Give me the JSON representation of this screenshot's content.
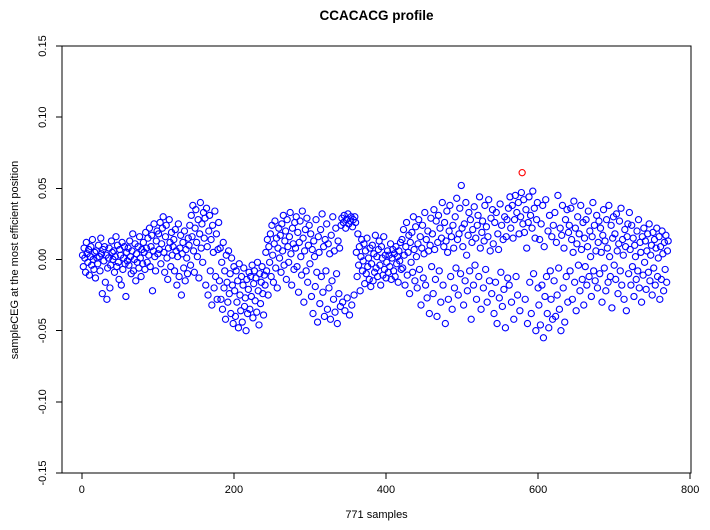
{
  "chart_data": {
    "type": "scatter",
    "title": "CCACACG profile",
    "xlabel": "771 samples",
    "ylabel": "sampleCEG at the most efficient position",
    "n_samples": 771,
    "x_ticks": [
      0,
      200,
      400,
      600,
      800
    ],
    "x_tick_labels": [
      "0",
      "200",
      "400",
      "600",
      "800"
    ],
    "y_ticks": [
      -0.15,
      -0.1,
      -0.05,
      0.0,
      0.05,
      0.1,
      0.15
    ],
    "y_tick_labels": [
      "-0.15",
      "-0.10",
      "-0.05",
      "0.00",
      "0.05",
      "0.10",
      "0.15"
    ],
    "xlim": [
      -26,
      801
    ],
    "ylim": [
      -0.15,
      0.15
    ],
    "grid": false,
    "legend": "none",
    "point_style": "open-circle",
    "point_color": "#0000ff",
    "highlight_color": "#ff0000",
    "highlight_index": 579,
    "highlight_value": 0.061,
    "axis_color": "#000000",
    "background_color": "#ffffff",
    "value_scale": 0.001,
    "values_milli": [
      3,
      -5,
      8,
      1,
      -9,
      12,
      4,
      -2,
      7,
      -11,
      2,
      9,
      -4,
      14,
      0,
      -7,
      5,
      -13,
      6,
      1,
      -3,
      10,
      2,
      -8,
      15,
      4,
      -24,
      7,
      -1,
      9,
      -16,
      3,
      -28,
      -6,
      1,
      8,
      -20,
      -4,
      13,
      5,
      0,
      6,
      -9,
      2,
      16,
      -5,
      10,
      -2,
      -14,
      7,
      3,
      -18,
      12,
      -7,
      1,
      9,
      -3,
      -26,
      5,
      -1,
      8,
      -4,
      13,
      2,
      -10,
      6,
      18,
      -8,
      0,
      11,
      -15,
      4,
      -2,
      9,
      -6,
      16,
      1,
      -12,
      7,
      -3,
      12,
      5,
      -7,
      19,
      8,
      -2,
      15,
      3,
      22,
      -5,
      9,
      17,
      -22,
      6,
      25,
      2,
      -8,
      13,
      20,
      4,
      18,
      7,
      26,
      -3,
      11,
      22,
      30,
      5,
      -9,
      16,
      24,
      1,
      -14,
      8,
      28,
      12,
      -5,
      19,
      3,
      9,
      14,
      -8,
      21,
      6,
      -18,
      2,
      25,
      -12,
      8,
      17,
      -25,
      4,
      12,
      -6,
      20,
      -15,
      7,
      1,
      -10,
      15,
      10,
      24,
      -4,
      31,
      16,
      38,
      6,
      -9,
      22,
      35,
      12,
      2,
      28,
      -13,
      18,
      40,
      8,
      25,
      -2,
      33,
      15,
      29,
      -18,
      36,
      9,
      -25,
      20,
      31,
      -8,
      14,
      -32,
      24,
      5,
      -20,
      34,
      -12,
      18,
      -28,
      7,
      26,
      -15,
      8,
      -28,
      -2,
      -35,
      12,
      -20,
      -8,
      -42,
      3,
      -16,
      -30,
      6,
      -24,
      -10,
      -38,
      1,
      -18,
      -45,
      -5,
      -22,
      -40,
      -8,
      -30,
      -15,
      -48,
      -3,
      -25,
      -36,
      -12,
      -44,
      -18,
      -6,
      -33,
      -27,
      -50,
      -14,
      -38,
      -21,
      -9,
      -35,
      -12,
      -26,
      -4,
      -41,
      -17,
      -8,
      -29,
      -13,
      -37,
      -2,
      -22,
      -46,
      -10,
      -31,
      -16,
      -5,
      -24,
      -39,
      -11,
      -18,
      5,
      -8,
      14,
      -25,
      9,
      -2,
      18,
      -12,
      24,
      3,
      -16,
      11,
      27,
      -6,
      15,
      -20,
      8,
      22,
      1,
      17,
      -9,
      25,
      6,
      31,
      -4,
      13,
      20,
      -14,
      28,
      9,
      -2,
      16,
      33,
      4,
      -18,
      22,
      11,
      -7,
      26,
      8,
      30,
      -5,
      19,
      -23,
      12,
      27,
      2,
      -11,
      34,
      15,
      -30,
      6,
      21,
      -8,
      29,
      -16,
      10,
      24,
      -3,
      18,
      -26,
      7,
      -38,
      13,
      2,
      -19,
      28,
      -9,
      -44,
      16,
      5,
      -31,
      21,
      -12,
      32,
      -23,
      9,
      -40,
      14,
      -8,
      25,
      -35,
      11,
      -20,
      4,
      -42,
      17,
      -15,
      30,
      -28,
      6,
      -37,
      22,
      -10,
      -45,
      13,
      -24,
      8,
      -33,
      24,
      29,
      -30,
      26,
      31,
      -36,
      22,
      28,
      -27,
      32,
      25,
      -39,
      27,
      30,
      -32,
      23,
      28,
      -25,
      30,
      26,
      5,
      -12,
      18,
      -4,
      9,
      -22,
      2,
      14,
      -8,
      -1,
      11,
      -17,
      6,
      -10,
      15,
      -5,
      1,
      -14,
      8,
      -19,
      -3,
      10,
      -15,
      4,
      -9,
      17,
      -6,
      2,
      -12,
      7,
      13,
      -4,
      -18,
      9,
      1,
      -11,
      16,
      -7,
      3,
      -13,
      -2,
      6,
      -9,
      3,
      -5,
      11,
      -14,
      1,
      7,
      -8,
      4,
      -12,
      9,
      -3,
      2,
      -16,
      6,
      -1,
      12,
      -7,
      14,
      -6,
      21,
      3,
      -18,
      9,
      26,
      -11,
      5,
      17,
      -24,
      12,
      -2,
      19,
      -9,
      30,
      7,
      -15,
      23,
      2,
      -20,
      11,
      28,
      -7,
      16,
      -32,
      8,
      24,
      -13,
      4,
      33,
      -18,
      14,
      -27,
      20,
      6,
      -38,
      10,
      29,
      -5,
      18,
      -24,
      35,
      7,
      -14,
      27,
      -40,
      12,
      31,
      -8,
      22,
      -30,
      15,
      40,
      -18,
      9,
      26,
      -45,
      13,
      34,
      5,
      -28,
      20,
      38,
      -12,
      16,
      -35,
      24,
      8,
      -20,
      30,
      -6,
      43,
      14,
      -25,
      18,
      36,
      -10,
      52,
      22,
      9,
      -32,
      25,
      -15,
      40,
      3,
      -22,
      17,
      33,
      -8,
      28,
      -42,
      12,
      21,
      -18,
      37,
      -4,
      15,
      -28,
      24,
      31,
      -12,
      44,
      8,
      -35,
      19,
      27,
      -20,
      13,
      38,
      -7,
      23,
      -30,
      16,
      42,
      -15,
      6,
      29,
      -24,
      35,
      11,
      -38,
      26,
      -16,
      33,
      -45,
      18,
      7,
      -27,
      39,
      -9,
      24,
      -33,
      14,
      -21,
      30,
      -48,
      16,
      28,
      -13,
      36,
      -18,
      44,
      22,
      -30,
      38,
      15,
      -42,
      28,
      45,
      -12,
      33,
      -25,
      40,
      18,
      -36,
      30,
      47,
      61,
      25,
      42,
      19,
      -28,
      35,
      8,
      -45,
      26,
      44,
      -16,
      31,
      -38,
      22,
      48,
      -10,
      36,
      15,
      -50,
      28,
      40,
      -20,
      -32,
      14,
      -46,
      25,
      -18,
      38,
      -55,
      9,
      -26,
      42,
      -12,
      -38,
      20,
      -48,
      31,
      -8,
      -28,
      16,
      -42,
      24,
      -15,
      33,
      -40,
      12,
      -25,
      45,
      -6,
      -35,
      22,
      -50,
      17,
      38,
      -20,
      8,
      -44,
      28,
      -12,
      35,
      -30,
      19,
      24,
      -8,
      36,
      14,
      -28,
      5,
      41,
      -16,
      22,
      -36,
      11,
      30,
      -4,
      18,
      -22,
      38,
      7,
      -14,
      26,
      -32,
      15,
      -5,
      28,
      -18,
      9,
      34,
      -12,
      20,
      2,
      -26,
      16,
      40,
      -8,
      24,
      -15,
      6,
      31,
      -20,
      12,
      27,
      -10,
      22,
      5,
      -30,
      17,
      35,
      -6,
      13,
      -22,
      28,
      8,
      -16,
      38,
      2,
      -12,
      24,
      -34,
      15,
      30,
      -4,
      18,
      -14,
      32,
      6,
      -24,
      11,
      27,
      -8,
      36,
      -18,
      14,
      3,
      -28,
      21,
      9,
      -36,
      16,
      25,
      -10,
      33,
      7,
      -18,
      24,
      -5,
      15,
      -26,
      10,
      2,
      -14,
      20,
      -8,
      28,
      -20,
      12,
      5,
      -30,
      16,
      -11,
      22,
      -2,
      13,
      -21,
      6,
      18,
      -9,
      25,
      -15,
      3,
      10,
      -25,
      19,
      -6,
      14,
      -18,
      8,
      22,
      -12,
      1,
      16,
      -28,
      9,
      -14,
      20,
      4,
      -22,
      12,
      -7,
      17,
      -16,
      6,
      13
    ]
  }
}
